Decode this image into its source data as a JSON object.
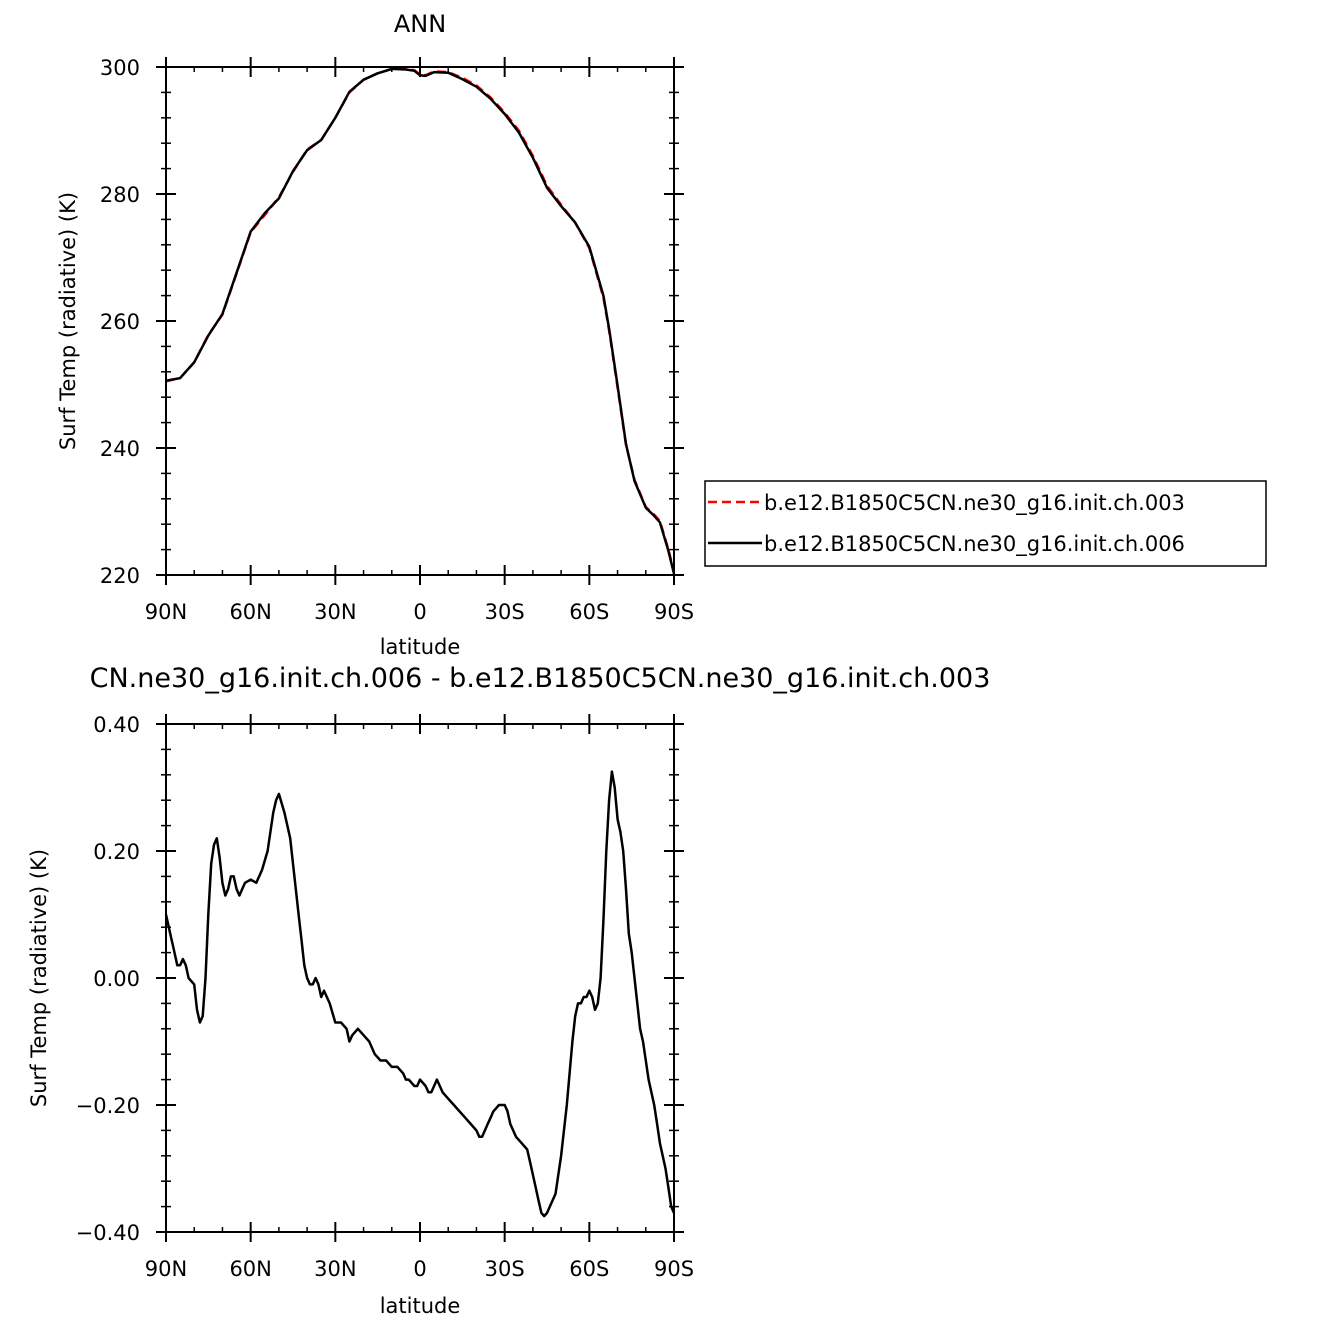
{
  "chart_data": [
    {
      "type": "line",
      "title": "ANN",
      "xlabel": "latitude",
      "ylabel": "Surf Temp (radiative) (K)",
      "xlim": [
        90,
        -90
      ],
      "ylim": [
        220,
        300
      ],
      "x_ticks": [
        90,
        60,
        30,
        0,
        -30,
        -60,
        -90
      ],
      "x_tick_labels": [
        "90N",
        "60N",
        "30N",
        "0",
        "30S",
        "60S",
        "90S"
      ],
      "y_ticks": [
        220,
        240,
        260,
        280,
        300
      ],
      "y_tick_labels": [
        "220",
        "240",
        "260",
        "280",
        "300"
      ],
      "grid": false,
      "legend_position": "right",
      "series": [
        {
          "name": "b.e12.B1850C5CN.ne30_g16.init.ch.003",
          "color": "#ff0000",
          "dash": "dashed",
          "x": [
            90,
            85,
            80,
            75,
            70,
            65,
            60,
            55,
            50,
            45,
            40,
            35,
            30,
            25,
            20,
            15,
            10,
            5,
            2,
            0,
            -2,
            -5,
            -10,
            -15,
            -20,
            -25,
            -30,
            -35,
            -40,
            -45,
            -50,
            -55,
            -60,
            -65,
            -67,
            -70,
            -73,
            -76,
            -80,
            -83,
            -85,
            -88,
            -90
          ],
          "y": [
            250.5,
            251,
            253.5,
            257.8,
            261,
            267.5,
            274,
            276.7,
            279.5,
            283.5,
            287,
            288.5,
            292,
            296,
            298,
            299,
            299.7,
            299.7,
            299.5,
            298.8,
            298.7,
            299.3,
            299.2,
            298.3,
            297.1,
            295.2,
            292.8,
            290,
            286,
            281.3,
            278.3,
            275.5,
            271.5,
            263.7,
            258.5,
            249.5,
            240.5,
            235,
            230.7,
            229.5,
            228.5,
            224,
            220.5
          ]
        },
        {
          "name": "b.e12.B1850C5CN.ne30_g16.init.ch.006",
          "color": "#000000",
          "dash": "solid",
          "x": [
            90,
            85,
            80,
            75,
            70,
            65,
            60,
            55,
            50,
            45,
            40,
            35,
            30,
            25,
            20,
            15,
            10,
            5,
            2,
            0,
            -2,
            -5,
            -10,
            -15,
            -20,
            -25,
            -30,
            -35,
            -40,
            -45,
            -50,
            -55,
            -60,
            -65,
            -67,
            -70,
            -73,
            -76,
            -80,
            -83,
            -85,
            -88,
            -90
          ],
          "y": [
            250.6,
            251,
            253.5,
            257.7,
            261.1,
            267.6,
            274.1,
            277,
            279.3,
            283.6,
            286.9,
            288.5,
            292,
            296.1,
            298,
            299,
            299.7,
            299.6,
            299.4,
            298.7,
            298.6,
            299.2,
            299.1,
            298.1,
            296.9,
            295,
            292.6,
            289.7,
            285.7,
            281,
            278.1,
            275.5,
            271.7,
            264,
            258.8,
            249.8,
            240.6,
            234.8,
            230.6,
            229.3,
            228.3,
            223.8,
            220.2
          ]
        }
      ]
    },
    {
      "type": "line",
      "title": "CN.ne30_g16.init.ch.006 - b.e12.B1850C5CN.ne30_g16.init.ch.003",
      "xlabel": "latitude",
      "ylabel": "Surf Temp (radiative) (K)",
      "xlim": [
        90,
        -90
      ],
      "ylim": [
        -0.4,
        0.4
      ],
      "x_ticks": [
        90,
        60,
        30,
        0,
        -30,
        -60,
        -90
      ],
      "x_tick_labels": [
        "90N",
        "60N",
        "30N",
        "0",
        "30S",
        "60S",
        "90S"
      ],
      "y_ticks": [
        -0.4,
        -0.2,
        0,
        0.2,
        0.4
      ],
      "y_tick_labels": [
        "−0.40",
        "−0.20",
        "0.00",
        "0.20",
        "0.40"
      ],
      "grid": false,
      "series": [
        {
          "color": "#000000",
          "dash": "solid",
          "x": [
            90,
            88.5,
            87,
            86,
            85,
            84,
            83,
            82,
            80,
            79,
            78,
            77,
            76,
            75,
            74,
            73,
            72,
            71,
            70,
            69,
            68,
            67,
            66,
            65,
            64,
            63,
            62,
            60,
            58,
            56,
            54,
            53,
            52,
            51,
            50,
            48,
            46,
            45,
            44,
            43,
            42,
            41,
            40,
            39,
            38,
            37,
            36,
            35,
            34,
            32,
            30,
            28,
            26,
            25,
            24,
            22,
            20,
            18,
            16,
            14,
            12,
            10,
            8,
            6,
            5,
            4,
            2,
            1,
            0,
            -2,
            -3,
            -4,
            -5,
            -6,
            -7,
            -8,
            -10,
            -12,
            -14,
            -16,
            -18,
            -20,
            -21,
            -22,
            -23,
            -24,
            -25,
            -26,
            -27,
            -28,
            -29,
            -30,
            -31,
            -32,
            -34,
            -36,
            -38,
            -39,
            -40,
            -41,
            -42,
            -43,
            -44,
            -45,
            -46,
            -48,
            -50,
            -52,
            -54,
            -55,
            -56,
            -57,
            -58,
            -59,
            -60,
            -61,
            -62,
            -63,
            -64,
            -65,
            -66,
            -67,
            -68,
            -69,
            -70,
            -71,
            -72,
            -73,
            -74,
            -75,
            -76,
            -77,
            -78,
            -79,
            -80,
            -81,
            -82,
            -83,
            -84,
            -85,
            -86,
            -87,
            -88,
            -89,
            -90
          ],
          "y": [
            0.1,
            0.07,
            0.04,
            0.02,
            0.02,
            0.03,
            0.02,
            0.0,
            -0.01,
            -0.05,
            -0.07,
            -0.06,
            0.0,
            0.1,
            0.18,
            0.21,
            0.22,
            0.19,
            0.15,
            0.13,
            0.14,
            0.16,
            0.16,
            0.14,
            0.13,
            0.14,
            0.15,
            0.155,
            0.15,
            0.17,
            0.2,
            0.23,
            0.26,
            0.28,
            0.29,
            0.26,
            0.22,
            0.18,
            0.14,
            0.1,
            0.06,
            0.02,
            0.0,
            -0.01,
            -0.01,
            0.0,
            -0.01,
            -0.03,
            -0.02,
            -0.04,
            -0.07,
            -0.07,
            -0.08,
            -0.1,
            -0.09,
            -0.08,
            -0.09,
            -0.1,
            -0.12,
            -0.13,
            -0.13,
            -0.14,
            -0.14,
            -0.15,
            -0.16,
            -0.16,
            -0.17,
            -0.17,
            -0.16,
            -0.17,
            -0.18,
            -0.18,
            -0.17,
            -0.16,
            -0.17,
            -0.18,
            -0.19,
            -0.2,
            -0.21,
            -0.22,
            -0.23,
            -0.24,
            -0.25,
            -0.25,
            -0.24,
            -0.23,
            -0.22,
            -0.21,
            -0.205,
            -0.2,
            -0.2,
            -0.2,
            -0.21,
            -0.23,
            -0.25,
            -0.26,
            -0.27,
            -0.29,
            -0.31,
            -0.33,
            -0.35,
            -0.37,
            -0.375,
            -0.37,
            -0.36,
            -0.34,
            -0.28,
            -0.2,
            -0.1,
            -0.06,
            -0.04,
            -0.04,
            -0.03,
            -0.03,
            -0.02,
            -0.03,
            -0.05,
            -0.04,
            0.0,
            0.09,
            0.2,
            0.28,
            0.325,
            0.3,
            0.25,
            0.23,
            0.2,
            0.14,
            0.07,
            0.04,
            0.0,
            -0.04,
            -0.08,
            -0.1,
            -0.13,
            -0.16,
            -0.18,
            -0.2,
            -0.23,
            -0.26,
            -0.28,
            -0.3,
            -0.33,
            -0.36,
            -0.37
          ]
        }
      ]
    }
  ]
}
